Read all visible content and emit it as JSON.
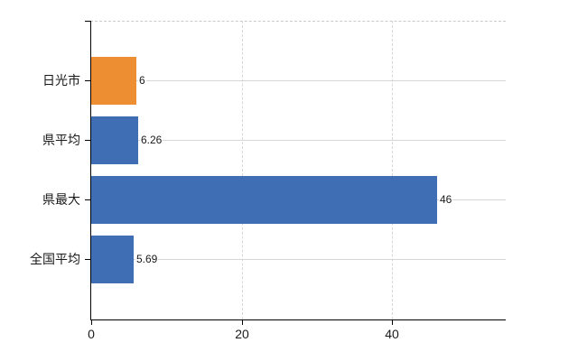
{
  "chart_data": {
    "type": "bar",
    "orientation": "horizontal",
    "title": "",
    "xlabel": "",
    "ylabel": "",
    "categories": [
      "日光市",
      "県平均",
      "県最大",
      "全国平均"
    ],
    "values": [
      6,
      6.26,
      46,
      5.69
    ],
    "value_labels": [
      "6",
      "6.26",
      "46",
      "5.69"
    ],
    "xticks": [
      0,
      20,
      40
    ],
    "xtick_labels": [
      "0",
      "20",
      "40"
    ],
    "xlim": [
      0,
      55.2
    ],
    "grid": "on",
    "legend": "none",
    "bar_colors": [
      "#EE8E33",
      "#3F6EB4",
      "#3F6EB4",
      "#3F6EB4"
    ],
    "colors": {
      "highlight_bar": "#EE8E33",
      "default_bar": "#3F6EB4",
      "gridline": "#d6d6d6",
      "top_border": "#c9c9c9",
      "axis": "#000000",
      "text": "#1a1a1a",
      "background": "#ffffff"
    }
  }
}
